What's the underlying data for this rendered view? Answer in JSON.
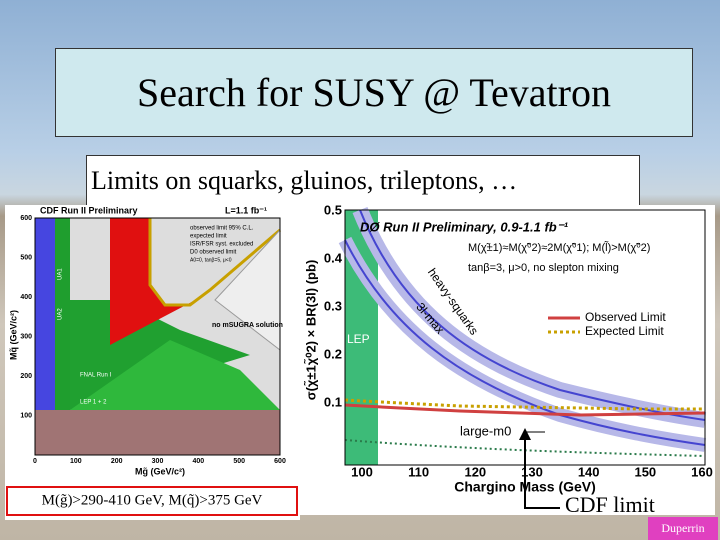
{
  "title": "Search for SUSY @ Tevatron",
  "subtitle": "Limits on squarks, gluinos, trileptons, …",
  "left_plot": {
    "title": "CDF Run II Preliminary",
    "lumi": "L=1.1 fb⁻¹",
    "x_label": "Mg̃ (GeV/c²)",
    "y_label": "Mq̃ (GeV/c²)",
    "xticks": [
      0,
      100,
      200,
      300,
      400,
      500,
      600
    ],
    "yticks": [
      100,
      200,
      300,
      400,
      500,
      600
    ],
    "legend": [
      "observed limit 95% C.L.",
      "expected limit",
      "ISR/FSR syst. excluded",
      "D0 observed limit"
    ],
    "params": "A0=0, tanβ=5, μ<0",
    "region_labels": [
      "no mSUGRA solution",
      "FNAL Run I",
      "LEP 1 + 2",
      "UA1",
      "UA2"
    ],
    "caption": "M(g̃)>290-410 GeV, M(q̃)>375 GeV"
  },
  "right_plot": {
    "title": "DØ Run II Preliminary, 0.9-1.1 fb⁻¹",
    "line1": "M(χ̃±1)≈M(χ̃⁰2)≈2M(χ̃⁰1); M(l̃)>M(χ̃⁰2)",
    "line2": "tanβ=3, μ>0, no slepton mixing",
    "legend": [
      "Observed Limit",
      "Expected Limit"
    ],
    "x_label": "Chargino Mass (GeV)",
    "y_label": "σ(χ̃±1χ̃⁰2) × BR(3l) (pb)",
    "xticks": [
      100,
      110,
      120,
      130,
      140,
      150,
      160
    ],
    "yticks": [
      0.1,
      0.2,
      0.3,
      0.4,
      0.5
    ],
    "curve_labels": [
      "heavy-squarks",
      "3l-max",
      "large-m0",
      "LEP"
    ]
  },
  "callout": "CDF limit",
  "footer": "Duperrin"
}
